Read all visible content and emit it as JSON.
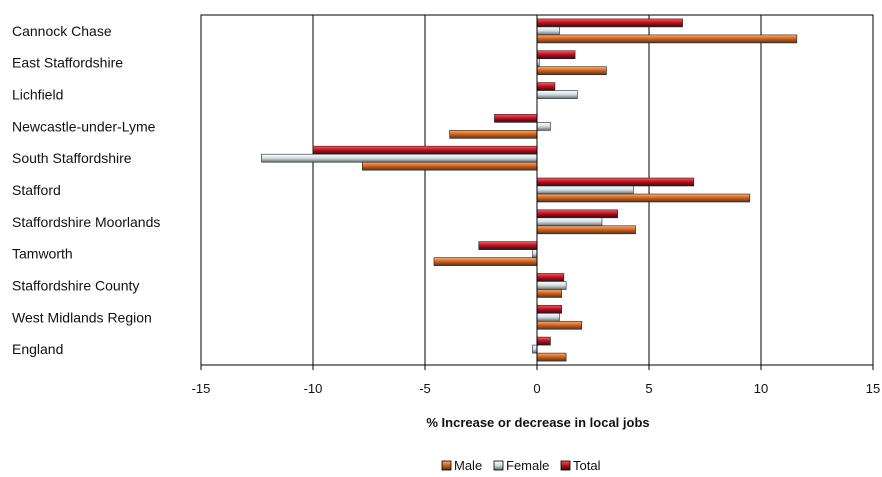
{
  "chart_data": {
    "type": "bar",
    "orientation": "horizontal",
    "categories": [
      "Cannock Chase",
      "East Staffordshire",
      "Lichfield",
      "Newcastle-under-Lyme",
      "South Staffordshire",
      "Stafford",
      "Staffordshire Moorlands",
      "Tamworth",
      "Staffordshire County",
      "West Midlands Region",
      "England"
    ],
    "series": [
      {
        "name": "Male",
        "color": "#c8611f",
        "values": [
          11.6,
          3.1,
          0.0,
          -3.9,
          -7.8,
          9.5,
          4.4,
          -4.6,
          1.1,
          2.0,
          1.3
        ]
      },
      {
        "name": "Female",
        "color": "#b8c6cc",
        "values": [
          1.0,
          0.1,
          1.8,
          0.6,
          -12.3,
          4.3,
          2.9,
          -0.2,
          1.3,
          1.0,
          -0.2
        ]
      },
      {
        "name": "Total",
        "color": "#b01020",
        "values": [
          6.5,
          1.7,
          0.8,
          -1.9,
          -10.0,
          7.0,
          3.6,
          -2.6,
          1.2,
          1.1,
          0.6
        ]
      }
    ],
    "xlabel": "% Increase or decrease in local jobs",
    "ylabel": "",
    "xlim": [
      -15,
      15
    ],
    "ticks": [
      "-15",
      "-10",
      "-5",
      "0",
      "5",
      "10",
      "15"
    ],
    "grid": "vertical major lines",
    "legend": "bottom"
  }
}
